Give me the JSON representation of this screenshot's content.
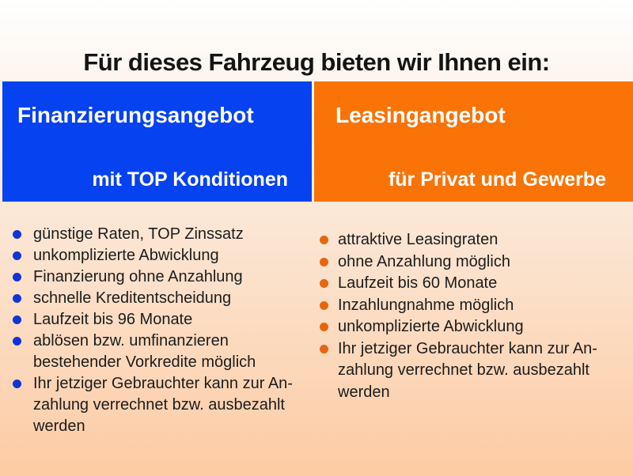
{
  "title": "Für dieses Fahrzeug bieten wir Ihnen ein:",
  "colors": {
    "background_top": "#ffffff",
    "background_bottom": "#fdcba4",
    "title_text": "#141414",
    "body_text": "#1c1c1c",
    "finance_blue": "#0742f0",
    "leasing_orange": "#f97307",
    "finance_bullet": "#1134d6",
    "leasing_bullet": "#e7650f"
  },
  "offers": {
    "finance": {
      "heading": "Finanzierungsangebot",
      "subtitle": "mit TOP Konditionen",
      "items": [
        "günstige Raten, TOP Zinssatz",
        "unkomplizierte Abwicklung",
        "Finanzierung ohne Anzahlung",
        "schnelle Kreditentscheidung",
        "Laufzeit bis 96 Monate",
        "ablösen bzw. umfinanzieren\nbestehender Vorkredite möglich",
        "Ihr jetziger Gebrauchter kann zur An-\nzahlung verrechnet bzw. ausbezahlt werden"
      ]
    },
    "leasing": {
      "heading": "Leasingangebot",
      "subtitle": "für Privat und Gewerbe",
      "items": [
        "attraktive Leasingraten",
        "ohne Anzahlung möglich",
        "Laufzeit bis 60 Monate",
        "Inzahlungnahme möglich",
        "unkomplizierte Abwicklung",
        "Ihr jetziger Gebrauchter kann zur An-\nzahlung verrechnet bzw. ausbezahlt werden"
      ]
    }
  }
}
